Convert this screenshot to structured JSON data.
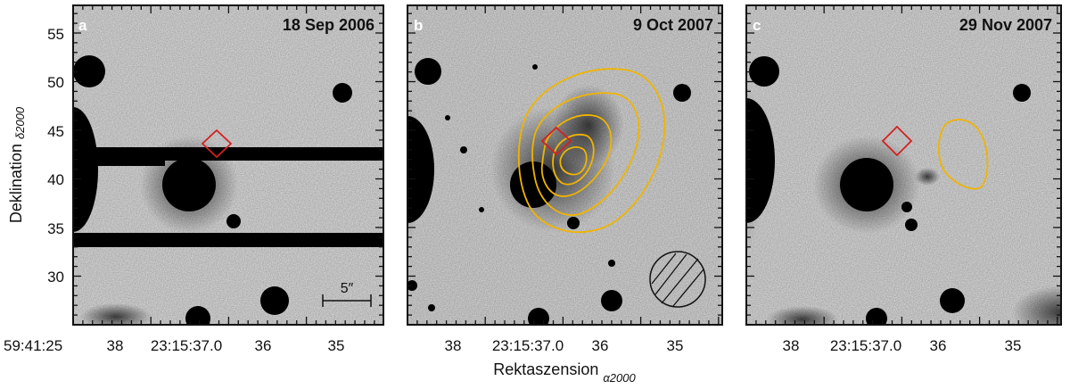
{
  "figure": {
    "ylabel": "Deklination",
    "ylabel_sub": "δ2000",
    "xlabel": "Rektaszension",
    "xlabel_sub": "α2000",
    "corner_label": "59:41:25",
    "y_ticks": [
      "55",
      "50",
      "45",
      "40",
      "35",
      "30"
    ],
    "x_ticks": [
      "38",
      "23:15:37.0",
      "36",
      "35"
    ],
    "scale_bar_label": "5″",
    "colors": {
      "frame": "#111111",
      "marker": "#d42020",
      "contour": "#f0b400",
      "sky": "#e4e4e4"
    }
  },
  "panels": [
    {
      "letter": "a",
      "date": "18 Sep 2006"
    },
    {
      "letter": "b",
      "date": "9 Oct 2007"
    },
    {
      "letter": "c",
      "date": "29 Nov 2007"
    }
  ]
}
